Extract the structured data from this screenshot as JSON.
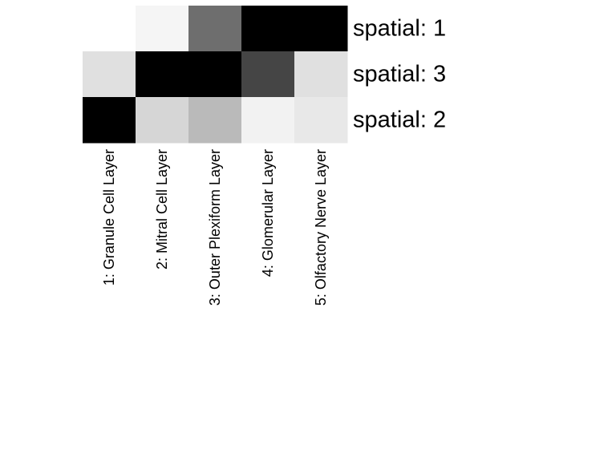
{
  "chart_data": {
    "type": "heatmap",
    "title": "",
    "xlabel": "",
    "ylabel": "",
    "colormap": "grayscale (white = low, black = high)",
    "legend": "none",
    "grid": false,
    "rows": [
      "spatial: 1",
      "spatial: 3",
      "spatial: 2"
    ],
    "columns": [
      "1: Granule Cell Layer",
      "2: Mitral Cell Layer",
      "3: Outer Plexiform Layer",
      "4: Glomerular Layer",
      "5: Olfactory Nerve Layer"
    ],
    "values": [
      [
        0.0,
        0.04,
        0.57,
        1.0,
        1.0
      ],
      [
        0.12,
        1.0,
        1.0,
        0.73,
        0.12
      ],
      [
        1.0,
        0.16,
        0.27,
        0.05,
        0.09
      ]
    ],
    "value_range": [
      0,
      1
    ]
  }
}
